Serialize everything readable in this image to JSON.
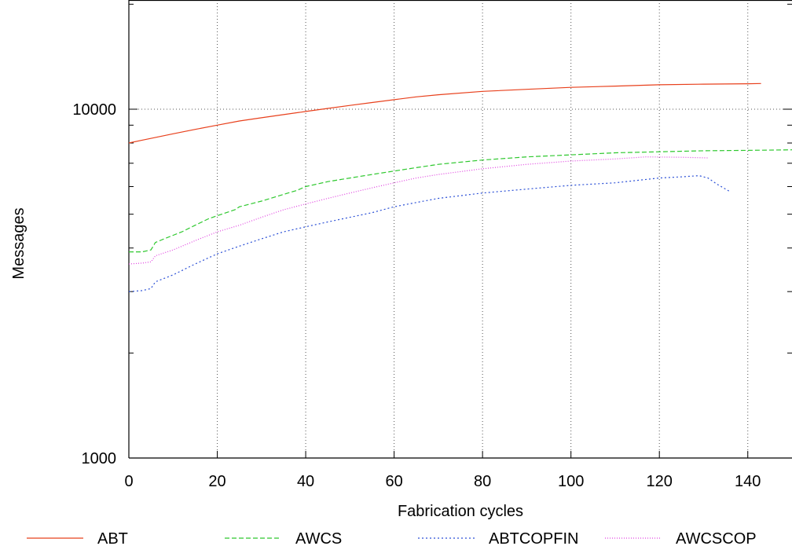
{
  "chart_data": {
    "type": "line",
    "title": "",
    "xlabel": "Fabrication cycles",
    "ylabel": "Messages",
    "xlim": [
      0,
      150
    ],
    "ylim": [
      1000,
      30000
    ],
    "yscale": "log",
    "grid": true,
    "legend_position": "bottom",
    "x_ticks": [
      "0",
      "20",
      "40",
      "60",
      "80",
      "100",
      "120",
      "140"
    ],
    "y_ticks": [
      "1000",
      "10000"
    ],
    "series": [
      {
        "name": "ABT",
        "color": "#e8401c",
        "style": "solid",
        "points": [
          [
            0,
            8000
          ],
          [
            3,
            8150
          ],
          [
            7,
            8350
          ],
          [
            10,
            8500
          ],
          [
            15,
            8750
          ],
          [
            20,
            9000
          ],
          [
            25,
            9250
          ],
          [
            30,
            9450
          ],
          [
            35,
            9650
          ],
          [
            40,
            9850
          ],
          [
            45,
            10050
          ],
          [
            50,
            10250
          ],
          [
            55,
            10450
          ],
          [
            60,
            10650
          ],
          [
            65,
            10850
          ],
          [
            70,
            11000
          ],
          [
            80,
            11250
          ],
          [
            90,
            11400
          ],
          [
            100,
            11550
          ],
          [
            110,
            11650
          ],
          [
            120,
            11750
          ],
          [
            130,
            11800
          ],
          [
            140,
            11830
          ],
          [
            143,
            11850
          ]
        ]
      },
      {
        "name": "AWCS",
        "color": "#2ec82e",
        "style": "dashed",
        "points": [
          [
            0,
            3900
          ],
          [
            3,
            3900
          ],
          [
            5,
            3950
          ],
          [
            6,
            4150
          ],
          [
            8,
            4250
          ],
          [
            10,
            4350
          ],
          [
            12,
            4450
          ],
          [
            15,
            4650
          ],
          [
            18,
            4850
          ],
          [
            20,
            4950
          ],
          [
            24,
            5150
          ],
          [
            25,
            5250
          ],
          [
            30,
            5450
          ],
          [
            35,
            5700
          ],
          [
            38,
            5850
          ],
          [
            40,
            6000
          ],
          [
            45,
            6200
          ],
          [
            50,
            6350
          ],
          [
            55,
            6500
          ],
          [
            60,
            6650
          ],
          [
            65,
            6800
          ],
          [
            70,
            6950
          ],
          [
            80,
            7150
          ],
          [
            90,
            7300
          ],
          [
            100,
            7400
          ],
          [
            110,
            7500
          ],
          [
            120,
            7550
          ],
          [
            130,
            7600
          ],
          [
            140,
            7620
          ],
          [
            150,
            7650
          ]
        ]
      },
      {
        "name": "ABTCOPFIN",
        "color": "#2a4fd6",
        "style": "dotted",
        "points": [
          [
            0,
            3000
          ],
          [
            3,
            3020
          ],
          [
            5,
            3060
          ],
          [
            6,
            3200
          ],
          [
            10,
            3350
          ],
          [
            15,
            3600
          ],
          [
            20,
            3850
          ],
          [
            25,
            4050
          ],
          [
            30,
            4250
          ],
          [
            35,
            4450
          ],
          [
            40,
            4600
          ],
          [
            45,
            4750
          ],
          [
            50,
            4900
          ],
          [
            55,
            5050
          ],
          [
            60,
            5250
          ],
          [
            65,
            5400
          ],
          [
            70,
            5550
          ],
          [
            80,
            5750
          ],
          [
            90,
            5900
          ],
          [
            100,
            6050
          ],
          [
            110,
            6150
          ],
          [
            115,
            6250
          ],
          [
            120,
            6350
          ],
          [
            125,
            6400
          ],
          [
            129,
            6450
          ],
          [
            131,
            6350
          ],
          [
            133,
            6100
          ],
          [
            136,
            5800
          ]
        ]
      },
      {
        "name": "AWCSCOP",
        "color": "#e040e0",
        "style": "dense-dotted",
        "points": [
          [
            0,
            3600
          ],
          [
            3,
            3620
          ],
          [
            5,
            3650
          ],
          [
            6,
            3800
          ],
          [
            10,
            3950
          ],
          [
            15,
            4200
          ],
          [
            20,
            4450
          ],
          [
            25,
            4650
          ],
          [
            30,
            4900
          ],
          [
            35,
            5150
          ],
          [
            40,
            5350
          ],
          [
            45,
            5550
          ],
          [
            50,
            5750
          ],
          [
            55,
            5950
          ],
          [
            60,
            6150
          ],
          [
            65,
            6350
          ],
          [
            70,
            6500
          ],
          [
            80,
            6750
          ],
          [
            90,
            6950
          ],
          [
            100,
            7100
          ],
          [
            110,
            7200
          ],
          [
            117,
            7300
          ],
          [
            125,
            7280
          ],
          [
            131,
            7250
          ]
        ]
      }
    ]
  }
}
